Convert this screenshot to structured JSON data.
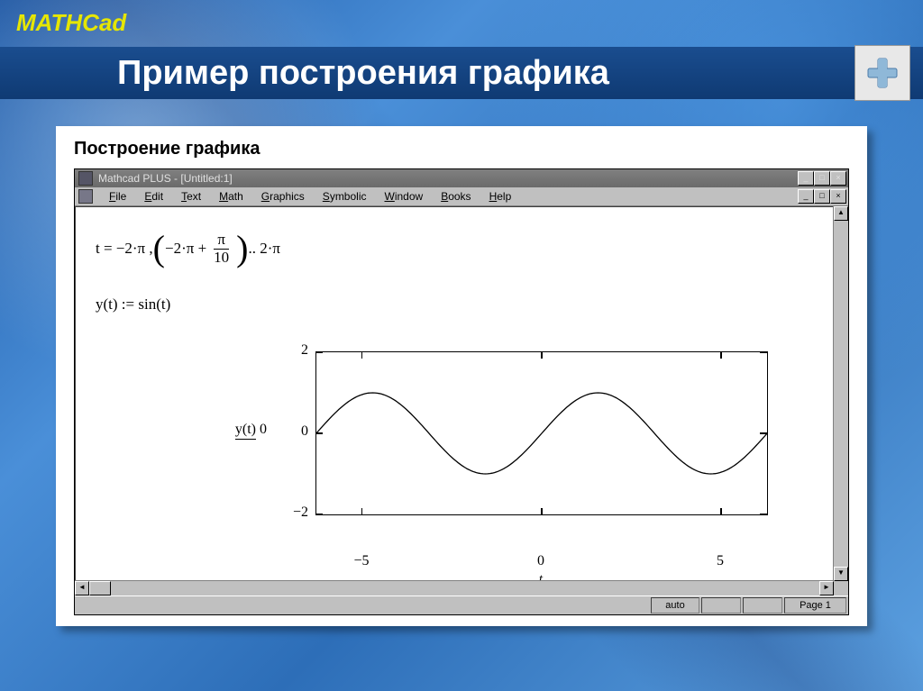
{
  "header": {
    "brand": "MATHCad",
    "title": "Пример построения графика"
  },
  "panel": {
    "heading": "Построение графика"
  },
  "window": {
    "title": "Mathcad PLUS - [Untitled:1]",
    "menu": [
      "File",
      "Edit",
      "Text",
      "Math",
      "Graphics",
      "Symbolic",
      "Window",
      "Books",
      "Help"
    ],
    "status": {
      "auto": "auto",
      "page": "Page 1"
    }
  },
  "equations": {
    "eq1": {
      "lhs": "t  =  −2·π ,",
      "inner_pref": "−2·π  +",
      "frac_num": "π",
      "frac_den": "10",
      "inner_suf": ".. 2·π"
    },
    "eq2": "y(t)  :=  sin(t)"
  },
  "chart": {
    "ylabel": "y(t)",
    "ymid": "0",
    "xlabel": "t",
    "ylim": [
      -2,
      2
    ],
    "xlim": [
      -6.28,
      6.28
    ],
    "yticks": [
      {
        "v": 2,
        "label": "2"
      },
      {
        "v": 0,
        "label": "0"
      },
      {
        "v": -2,
        "label": "−2"
      }
    ],
    "xticks": [
      {
        "v": -5,
        "label": "−5"
      },
      {
        "v": 0,
        "label": "0"
      },
      {
        "v": 5,
        "label": "5"
      }
    ],
    "plot_color": "#000000",
    "box_color": "#000000",
    "background": "#ffffff",
    "line_width": 1.3
  }
}
